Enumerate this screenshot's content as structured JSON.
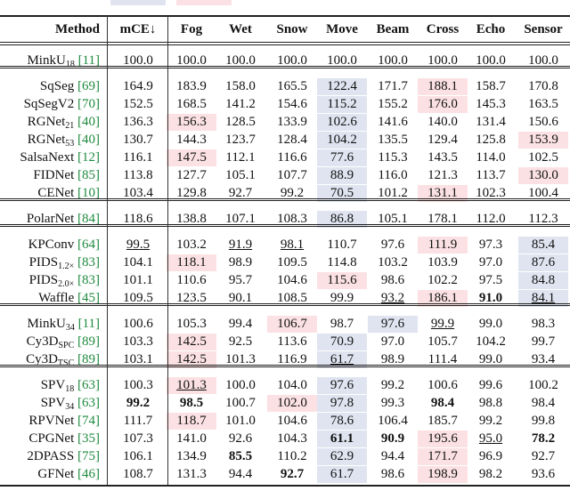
{
  "table": {
    "header": [
      "Method",
      "mCE↓",
      "Fog",
      "Wet",
      "Snow",
      "Move",
      "Beam",
      "Cross",
      "Echo",
      "Sensor"
    ],
    "groups": [
      [
        {
          "name": "MinkU",
          "sub": "18",
          "cite": "[11]",
          "cells": [
            {
              "v": "100.0"
            },
            {
              "v": "100.0"
            },
            {
              "v": "100.0"
            },
            {
              "v": "100.0"
            },
            {
              "v": "100.0"
            },
            {
              "v": "100.0"
            },
            {
              "v": "100.0"
            },
            {
              "v": "100.0"
            },
            {
              "v": "100.0"
            }
          ]
        }
      ],
      [
        {
          "name": "SqSeg",
          "cite": "[69]",
          "cells": [
            {
              "v": "164.9"
            },
            {
              "v": "183.9"
            },
            {
              "v": "158.0"
            },
            {
              "v": "165.5"
            },
            {
              "v": "122.4",
              "bg": "blue"
            },
            {
              "v": "171.7"
            },
            {
              "v": "188.1",
              "bg": "pink"
            },
            {
              "v": "158.7"
            },
            {
              "v": "170.8"
            }
          ]
        },
        {
          "name": "SqSegV2",
          "cite": "[70]",
          "cells": [
            {
              "v": "152.5"
            },
            {
              "v": "168.5"
            },
            {
              "v": "141.2"
            },
            {
              "v": "154.6"
            },
            {
              "v": "115.2",
              "bg": "blue"
            },
            {
              "v": "155.2"
            },
            {
              "v": "176.0",
              "bg": "pink"
            },
            {
              "v": "145.3"
            },
            {
              "v": "163.5"
            }
          ]
        },
        {
          "name": "RGNet",
          "sub": "21",
          "cite": "[40]",
          "cells": [
            {
              "v": "136.3"
            },
            {
              "v": "156.3",
              "bg": "pink"
            },
            {
              "v": "128.5"
            },
            {
              "v": "133.9"
            },
            {
              "v": "102.6",
              "bg": "blue"
            },
            {
              "v": "141.6"
            },
            {
              "v": "140.0"
            },
            {
              "v": "131.4"
            },
            {
              "v": "150.6"
            }
          ]
        },
        {
          "name": "RGNet",
          "sub": "53",
          "cite": "[40]",
          "cells": [
            {
              "v": "130.7"
            },
            {
              "v": "144.3"
            },
            {
              "v": "123.7"
            },
            {
              "v": "128.4"
            },
            {
              "v": "104.2",
              "bg": "blue"
            },
            {
              "v": "135.5"
            },
            {
              "v": "129.4"
            },
            {
              "v": "125.8"
            },
            {
              "v": "153.9",
              "bg": "pink"
            }
          ]
        },
        {
          "name": "SalsaNext",
          "cite": "[12]",
          "cells": [
            {
              "v": "116.1"
            },
            {
              "v": "147.5",
              "bg": "pink"
            },
            {
              "v": "112.1"
            },
            {
              "v": "116.6"
            },
            {
              "v": "77.6",
              "bg": "blue"
            },
            {
              "v": "115.3"
            },
            {
              "v": "143.5"
            },
            {
              "v": "114.0"
            },
            {
              "v": "102.5"
            }
          ]
        },
        {
          "name": "FIDNet",
          "cite": "[85]",
          "cells": [
            {
              "v": "113.8"
            },
            {
              "v": "127.7"
            },
            {
              "v": "105.1"
            },
            {
              "v": "107.7"
            },
            {
              "v": "88.9",
              "bg": "blue"
            },
            {
              "v": "116.0"
            },
            {
              "v": "121.3"
            },
            {
              "v": "113.7"
            },
            {
              "v": "130.0",
              "bg": "pink"
            }
          ]
        },
        {
          "name": "CENet",
          "cite": "[10]",
          "cells": [
            {
              "v": "103.4"
            },
            {
              "v": "129.8"
            },
            {
              "v": "92.7"
            },
            {
              "v": "99.2"
            },
            {
              "v": "70.5",
              "bg": "blue"
            },
            {
              "v": "101.2"
            },
            {
              "v": "131.1",
              "bg": "pink"
            },
            {
              "v": "102.3"
            },
            {
              "v": "100.4"
            }
          ]
        }
      ],
      [
        {
          "name": "PolarNet",
          "cite": "[84]",
          "cells": [
            {
              "v": "118.6"
            },
            {
              "v": "138.8"
            },
            {
              "v": "107.1"
            },
            {
              "v": "108.3"
            },
            {
              "v": "86.8",
              "bg": "blue"
            },
            {
              "v": "105.1"
            },
            {
              "v": "178.1"
            },
            {
              "v": "112.0"
            },
            {
              "v": "112.3"
            }
          ]
        }
      ],
      [
        {
          "name": "KPConv",
          "cite": "[64]",
          "cells": [
            {
              "v": "99.5",
              "u": true
            },
            {
              "v": "103.2"
            },
            {
              "v": "91.9",
              "u": true
            },
            {
              "v": "98.1",
              "u": true
            },
            {
              "v": "110.7"
            },
            {
              "v": "97.6"
            },
            {
              "v": "111.9",
              "bg": "pink"
            },
            {
              "v": "97.3"
            },
            {
              "v": "85.4",
              "bg": "blue"
            }
          ]
        },
        {
          "name": "PIDS",
          "sub": "1.2×",
          "cite": "[83]",
          "cells": [
            {
              "v": "104.1"
            },
            {
              "v": "118.1",
              "bg": "pink"
            },
            {
              "v": "98.9"
            },
            {
              "v": "109.5"
            },
            {
              "v": "114.8"
            },
            {
              "v": "103.2"
            },
            {
              "v": "103.9"
            },
            {
              "v": "97.0"
            },
            {
              "v": "87.6",
              "bg": "blue"
            }
          ]
        },
        {
          "name": "PIDS",
          "sub": "2.0×",
          "cite": "[83]",
          "cells": [
            {
              "v": "101.1"
            },
            {
              "v": "110.6"
            },
            {
              "v": "95.7"
            },
            {
              "v": "104.6"
            },
            {
              "v": "115.6",
              "bg": "pink"
            },
            {
              "v": "98.6"
            },
            {
              "v": "102.2"
            },
            {
              "v": "97.5"
            },
            {
              "v": "84.8",
              "bg": "blue"
            }
          ]
        },
        {
          "name": "Waffle",
          "cite": "[45]",
          "cells": [
            {
              "v": "109.5"
            },
            {
              "v": "123.5"
            },
            {
              "v": "90.1"
            },
            {
              "v": "108.5"
            },
            {
              "v": "99.9"
            },
            {
              "v": "93.2",
              "u": true
            },
            {
              "v": "186.1",
              "bg": "pink"
            },
            {
              "v": "91.0",
              "b": true
            },
            {
              "v": "84.1",
              "u": true,
              "bg": "blue"
            }
          ]
        }
      ],
      [
        {
          "name": "MinkU",
          "sub": "34",
          "cite": "[11]",
          "cells": [
            {
              "v": "100.6"
            },
            {
              "v": "105.3"
            },
            {
              "v": "99.4"
            },
            {
              "v": "106.7",
              "bg": "pink"
            },
            {
              "v": "98.7"
            },
            {
              "v": "97.6",
              "bg": "blue"
            },
            {
              "v": "99.9",
              "u": true
            },
            {
              "v": "99.0"
            },
            {
              "v": "98.3"
            }
          ]
        },
        {
          "name": "Cy3D",
          "sub": "SPC",
          "cite": "[89]",
          "cells": [
            {
              "v": "103.3"
            },
            {
              "v": "142.5",
              "bg": "pink"
            },
            {
              "v": "92.5"
            },
            {
              "v": "113.6"
            },
            {
              "v": "70.9",
              "bg": "blue"
            },
            {
              "v": "97.0"
            },
            {
              "v": "105.7"
            },
            {
              "v": "104.2"
            },
            {
              "v": "99.7"
            }
          ]
        },
        {
          "name": "Cy3D",
          "sub": "TSC",
          "cite": "[89]",
          "cells": [
            {
              "v": "103.1"
            },
            {
              "v": "142.5",
              "bg": "pink"
            },
            {
              "v": "101.3"
            },
            {
              "v": "116.9"
            },
            {
              "v": "61.7",
              "u": true,
              "bg": "blue"
            },
            {
              "v": "98.9"
            },
            {
              "v": "111.4"
            },
            {
              "v": "99.0"
            },
            {
              "v": "93.4"
            }
          ]
        }
      ],
      [
        {
          "name": "SPV",
          "sub": "18",
          "cite": "[63]",
          "cells": [
            {
              "v": "100.3"
            },
            {
              "v": "101.3",
              "u": true,
              "bg": "pink"
            },
            {
              "v": "100.0"
            },
            {
              "v": "104.0"
            },
            {
              "v": "97.6",
              "bg": "blue"
            },
            {
              "v": "99.2"
            },
            {
              "v": "100.6"
            },
            {
              "v": "99.6"
            },
            {
              "v": "100.2"
            }
          ]
        },
        {
          "name": "SPV",
          "sub": "34",
          "cite": "[63]",
          "cells": [
            {
              "v": "99.2",
              "b": true
            },
            {
              "v": "98.5",
              "b": true
            },
            {
              "v": "100.7"
            },
            {
              "v": "102.0",
              "bg": "pink"
            },
            {
              "v": "97.8",
              "bg": "blue"
            },
            {
              "v": "99.3"
            },
            {
              "v": "98.4",
              "b": true
            },
            {
              "v": "98.8"
            },
            {
              "v": "98.4"
            }
          ]
        },
        {
          "name": "RPVNet",
          "cite": "[74]",
          "cells": [
            {
              "v": "111.7"
            },
            {
              "v": "118.7",
              "bg": "pink"
            },
            {
              "v": "101.0"
            },
            {
              "v": "104.6"
            },
            {
              "v": "78.6",
              "bg": "blue"
            },
            {
              "v": "106.4"
            },
            {
              "v": "185.7"
            },
            {
              "v": "99.2"
            },
            {
              "v": "99.8"
            }
          ]
        },
        {
          "name": "CPGNet",
          "cite": "[35]",
          "cells": [
            {
              "v": "107.3"
            },
            {
              "v": "141.0"
            },
            {
              "v": "92.6"
            },
            {
              "v": "104.3"
            },
            {
              "v": "61.1",
              "b": true,
              "bg": "blue"
            },
            {
              "v": "90.9",
              "b": true
            },
            {
              "v": "195.6",
              "bg": "pink"
            },
            {
              "v": "95.0",
              "u": true
            },
            {
              "v": "78.2",
              "b": true
            }
          ]
        },
        {
          "name": "2DPASS",
          "cite": "[75]",
          "cells": [
            {
              "v": "106.1"
            },
            {
              "v": "134.9"
            },
            {
              "v": "85.5",
              "b": true
            },
            {
              "v": "110.2"
            },
            {
              "v": "62.9",
              "bg": "blue"
            },
            {
              "v": "94.4"
            },
            {
              "v": "171.7",
              "bg": "pink"
            },
            {
              "v": "96.9"
            },
            {
              "v": "92.7"
            }
          ]
        },
        {
          "name": "GFNet",
          "cite": "[46]",
          "cells": [
            {
              "v": "108.7"
            },
            {
              "v": "131.3"
            },
            {
              "v": "94.4"
            },
            {
              "v": "92.7",
              "b": true
            },
            {
              "v": "61.7",
              "bg": "blue"
            },
            {
              "v": "98.6"
            },
            {
              "v": "198.9",
              "bg": "pink"
            },
            {
              "v": "98.2"
            },
            {
              "v": "93.6"
            }
          ]
        }
      ]
    ]
  }
}
